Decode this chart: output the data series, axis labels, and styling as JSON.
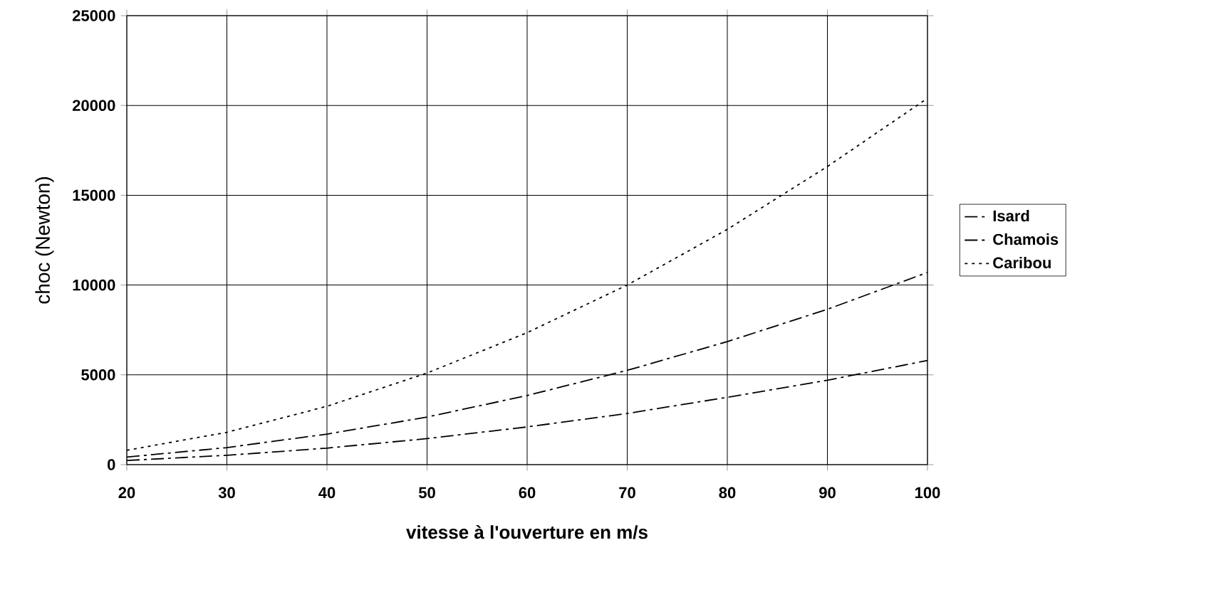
{
  "chart_data": {
    "type": "line",
    "xlabel": "vitesse à l'ouverture en m/s",
    "ylabel": "choc (Newton)",
    "x": [
      20,
      30,
      40,
      50,
      60,
      70,
      80,
      90,
      100
    ],
    "series": [
      {
        "name": "Isard",
        "color": "#000000",
        "line_style": "dashed",
        "values": [
          230,
          520,
          920,
          1450,
          2100,
          2850,
          3750,
          4700,
          5800
        ]
      },
      {
        "name": "Chamois",
        "color": "#000000",
        "line_style": "dashed",
        "values": [
          420,
          950,
          1700,
          2650,
          3850,
          5250,
          6850,
          8650,
          10700
        ]
      },
      {
        "name": "Caribou",
        "color": "#000000",
        "line_style": "dotted",
        "values": [
          800,
          1800,
          3250,
          5100,
          7350,
          10000,
          13100,
          16600,
          20400
        ]
      }
    ],
    "xlim": [
      20,
      100
    ],
    "ylim": [
      0,
      25000
    ],
    "xticks": [
      20,
      30,
      40,
      50,
      60,
      70,
      80,
      90,
      100
    ],
    "yticks": [
      0,
      5000,
      10000,
      15000,
      20000,
      25000
    ],
    "grid": true,
    "legend": "right",
    "marker": "none"
  }
}
